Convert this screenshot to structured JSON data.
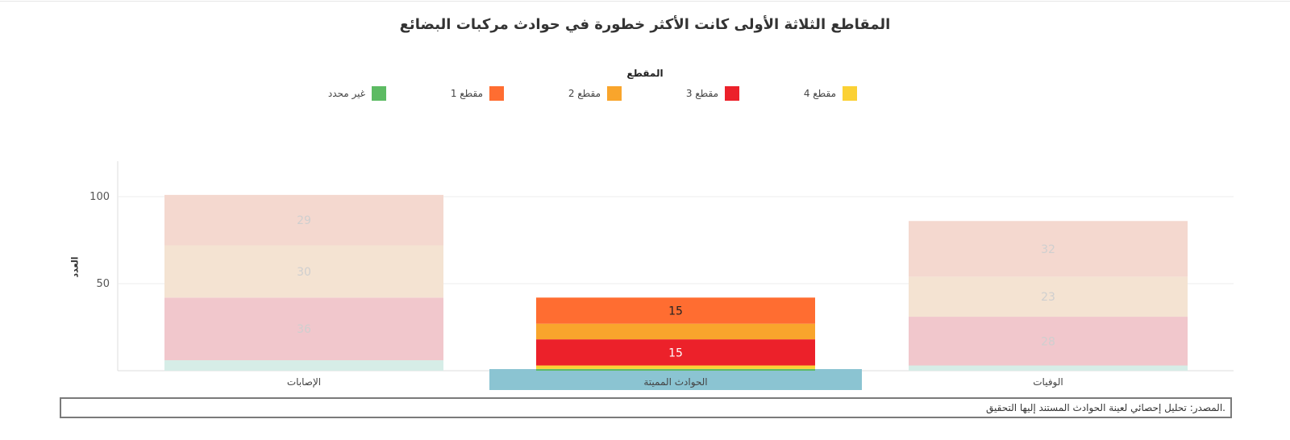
{
  "chart_data": {
    "type": "bar",
    "stacked": true,
    "title": "المقاطع الثلاثة الأولى كانت الأكثر خطورة في حوادث مركبات البضائع",
    "legend_title": "المقطع",
    "legend_position": "top",
    "ylabel": "العدد",
    "xlabel": "",
    "ylim": [
      0,
      120
    ],
    "yticks": [
      50,
      100
    ],
    "grid": true,
    "categories": [
      "الإصابات",
      "الحوادث المميتة",
      "الوفيات"
    ],
    "highlighted_category": "الحوادث المميتة",
    "series": [
      {
        "name": "غير محدد",
        "color": "#5dbb63",
        "faded_color": "#d6ede7",
        "values": [
          6,
          1,
          3
        ]
      },
      {
        "name": "مقطع 4",
        "color": "#fbd135",
        "faded_color": "#fbf3dd",
        "values": [
          0,
          2,
          0
        ]
      },
      {
        "name": "مقطع 3",
        "color": "#ec212a",
        "faded_color": "#f1c7cc",
        "values": [
          36,
          15,
          28
        ]
      },
      {
        "name": "مقطع 2",
        "color": "#f9a52c",
        "faded_color": "#f4e3d2",
        "values": [
          30,
          9,
          23
        ]
      },
      {
        "name": "مقطع 1",
        "color": "#ff6d31",
        "faded_color": "#f4d8cf",
        "values": [
          29,
          15,
          32
        ]
      }
    ],
    "data_labels": [
      {
        "category": "الإصابات",
        "series": "مقطع 3",
        "text": "36"
      },
      {
        "category": "الإصابات",
        "series": "مقطع 2",
        "text": "30"
      },
      {
        "category": "الإصابات",
        "series": "مقطع 1",
        "text": "29"
      },
      {
        "category": "الحوادث المميتة",
        "series": "مقطع 3",
        "text": "15"
      },
      {
        "category": "الحوادث المميتة",
        "series": "مقطع 1",
        "text": "15"
      },
      {
        "category": "الوفيات",
        "series": "مقطع 3",
        "text": "28"
      },
      {
        "category": "الوفيات",
        "series": "مقطع 2",
        "text": "23"
      },
      {
        "category": "الوفيات",
        "series": "مقطع 1",
        "text": "32"
      }
    ],
    "legend_order": [
      "مقطع 4",
      "مقطع 3",
      "مقطع 2",
      "مقطع 1",
      "غير محدد"
    ],
    "colors": {
      "grid": "#eeeeee",
      "axis": "#dddddd",
      "highlight_band": "#8bc4d2",
      "faded_label": "#cfcfcf"
    }
  },
  "source_text": ".المصدر: تحليل إحصائي لعينة الحوادث المستند إليها التحقيق"
}
